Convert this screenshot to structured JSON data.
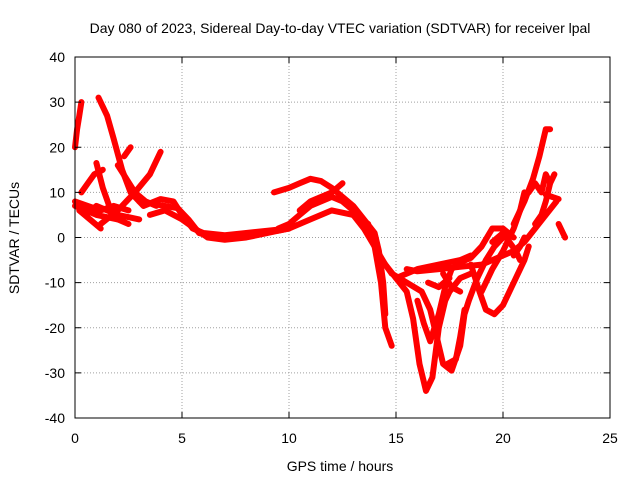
{
  "chart_data": {
    "type": "scatter",
    "title": "Day 080 of 2023, Sidereal Day-to-day VTEC variation (SDTVAR) for receiver lpal",
    "xlabel": "GPS time / hours",
    "ylabel": "SDTVAR / TECUs",
    "xlim": [
      0,
      25
    ],
    "ylim": [
      -40,
      40
    ],
    "xticks": [
      "0",
      "5",
      "10",
      "15",
      "20",
      "25"
    ],
    "yticks": [
      "-40",
      "-30",
      "-20",
      "-10",
      "0",
      "10",
      "20",
      "30",
      "40"
    ],
    "grid": true,
    "marker": "+",
    "color": "#ff0000",
    "series": [
      {
        "points": [
          [
            0,
            20
          ],
          [
            0.1,
            24
          ],
          [
            0.2,
            27
          ],
          [
            0.3,
            30
          ]
        ]
      },
      {
        "points": [
          [
            1.1,
            31
          ],
          [
            1.5,
            27
          ],
          [
            1.8,
            22
          ],
          [
            2.2,
            15
          ],
          [
            2.6,
            10
          ],
          [
            3.2,
            7
          ],
          [
            4.0,
            8.5
          ],
          [
            4.6,
            8
          ],
          [
            5.0,
            5
          ],
          [
            5.5,
            2
          ],
          [
            6.0,
            1
          ],
          [
            7,
            0.5
          ],
          [
            8,
            1
          ],
          [
            9,
            1.5
          ],
          [
            10,
            2
          ]
        ]
      },
      {
        "points": [
          [
            0.3,
            10
          ],
          [
            0.6,
            12
          ],
          [
            0.9,
            14
          ],
          [
            1.3,
            15
          ]
        ]
      },
      {
        "points": [
          [
            1.0,
            16.5
          ],
          [
            1.3,
            11
          ],
          [
            1.6,
            7
          ],
          [
            2.0,
            4
          ],
          [
            2.5,
            3
          ]
        ]
      },
      {
        "points": [
          [
            2.0,
            16
          ],
          [
            2.4,
            13
          ],
          [
            2.8,
            10
          ],
          [
            3.3,
            8
          ],
          [
            3.8,
            7
          ]
        ]
      },
      {
        "points": [
          [
            2.3,
            18
          ],
          [
            2.6,
            20
          ]
        ]
      },
      {
        "points": [
          [
            0,
            7
          ],
          [
            0.5,
            6
          ],
          [
            1.0,
            5
          ],
          [
            1.5,
            4.5
          ],
          [
            2.0,
            4
          ]
        ]
      },
      {
        "points": [
          [
            0.5,
            5
          ],
          [
            1.0,
            7
          ],
          [
            1.5,
            6
          ],
          [
            2.0,
            5
          ],
          [
            3.0,
            4
          ]
        ]
      },
      {
        "points": [
          [
            1.2,
            3
          ],
          [
            2.0,
            6
          ],
          [
            2.8,
            10
          ],
          [
            3.5,
            14
          ],
          [
            4.0,
            19
          ]
        ]
      },
      {
        "points": [
          [
            0,
            8
          ],
          [
            0.6,
            7
          ],
          [
            1.2,
            6
          ],
          [
            1.8,
            7
          ],
          [
            2.5,
            6
          ]
        ]
      },
      {
        "points": [
          [
            0.2,
            6
          ],
          [
            0.7,
            4
          ],
          [
            1.2,
            2
          ]
        ]
      },
      {
        "points": [
          [
            3.0,
            8
          ],
          [
            3.6,
            7.5
          ],
          [
            4.2,
            7
          ],
          [
            4.8,
            6.5
          ],
          [
            5.3,
            4
          ],
          [
            5.8,
            1
          ],
          [
            6.5,
            0
          ],
          [
            7.5,
            0.5
          ],
          [
            8.5,
            1
          ],
          [
            9.5,
            1.5
          ],
          [
            10,
            2
          ]
        ]
      },
      {
        "points": [
          [
            3.5,
            5
          ],
          [
            4.2,
            6
          ],
          [
            5.0,
            4
          ],
          [
            5.6,
            2
          ],
          [
            6.2,
            0
          ],
          [
            7,
            -0.5
          ],
          [
            8,
            0
          ],
          [
            9,
            1
          ],
          [
            10,
            2
          ],
          [
            11,
            4
          ],
          [
            12,
            6
          ],
          [
            13,
            5
          ],
          [
            13.7,
            3
          ]
        ]
      },
      {
        "points": [
          [
            9.5,
            2
          ],
          [
            10,
            3
          ],
          [
            10.5,
            5
          ],
          [
            11,
            7
          ],
          [
            11.5,
            8
          ],
          [
            12,
            9
          ],
          [
            12.5,
            8
          ],
          [
            13,
            6
          ],
          [
            13.5,
            3
          ],
          [
            14,
            -2
          ],
          [
            14.3,
            -10
          ],
          [
            14.5,
            -20
          ],
          [
            14.8,
            -24
          ]
        ]
      },
      {
        "points": [
          [
            9.3,
            10
          ],
          [
            10,
            11
          ],
          [
            10.5,
            12
          ],
          [
            11,
            13
          ],
          [
            11.5,
            12.5
          ],
          [
            12,
            11
          ],
          [
            12.5,
            9
          ],
          [
            13,
            7
          ],
          [
            13.5,
            4
          ],
          [
            14,
            1
          ],
          [
            14.2,
            -3
          ],
          [
            14.4,
            -10
          ],
          [
            14.5,
            -17
          ]
        ]
      },
      {
        "points": [
          [
            10.5,
            6
          ],
          [
            11,
            8
          ],
          [
            11.5,
            9
          ],
          [
            12,
            10
          ],
          [
            12.5,
            12
          ]
        ]
      },
      {
        "points": [
          [
            13,
            5
          ],
          [
            13.5,
            2
          ],
          [
            14,
            -2
          ],
          [
            14.5,
            -6
          ],
          [
            15,
            -9
          ],
          [
            15.5,
            -12
          ],
          [
            15.8,
            -18
          ],
          [
            16.1,
            -28
          ],
          [
            16.4,
            -34
          ],
          [
            16.7,
            -31
          ],
          [
            17,
            -20
          ],
          [
            17.3,
            -14
          ],
          [
            17.5,
            -12
          ],
          [
            18,
            -9
          ],
          [
            18.5,
            -8
          ]
        ]
      },
      {
        "points": [
          [
            14.2,
            -4
          ],
          [
            14.8,
            -8
          ],
          [
            15.5,
            -10
          ],
          [
            16.2,
            -12
          ],
          [
            16.6,
            -16
          ],
          [
            16.9,
            -22
          ],
          [
            17.2,
            -28
          ],
          [
            17.6,
            -29.5
          ],
          [
            18,
            -24
          ],
          [
            18.2,
            -17
          ],
          [
            18.4,
            -14
          ],
          [
            18.8,
            -9
          ],
          [
            19.2,
            -5
          ],
          [
            19.6,
            -2
          ],
          [
            20,
            0
          ]
        ]
      },
      {
        "points": [
          [
            15.5,
            -7
          ],
          [
            16,
            -7.5
          ],
          [
            17,
            -7
          ],
          [
            18,
            -6.5
          ],
          [
            19,
            -6
          ],
          [
            19.5,
            -5
          ],
          [
            20,
            -4
          ],
          [
            20.5,
            -3
          ],
          [
            21,
            -1
          ],
          [
            21.5,
            2
          ],
          [
            22,
            5
          ],
          [
            22.5,
            8
          ]
        ]
      },
      {
        "points": [
          [
            15,
            -9
          ],
          [
            15.5,
            -8
          ],
          [
            16,
            -7
          ],
          [
            17,
            -6
          ],
          [
            18,
            -5
          ],
          [
            18.5,
            -4
          ]
        ]
      },
      {
        "points": [
          [
            16,
            -14
          ],
          [
            16.3,
            -19
          ],
          [
            16.6,
            -23
          ],
          [
            17,
            -17
          ],
          [
            17.3,
            -11
          ],
          [
            17.6,
            -7
          ],
          [
            18,
            -5.5
          ],
          [
            18.5,
            -4.5
          ],
          [
            19,
            -2
          ],
          [
            19.5,
            2
          ],
          [
            20,
            2
          ],
          [
            20.5,
            0
          ]
        ]
      },
      {
        "points": [
          [
            17.2,
            -8
          ],
          [
            17.6,
            -11
          ],
          [
            18.0,
            -12
          ]
        ]
      },
      {
        "points": [
          [
            16.5,
            -10
          ],
          [
            17,
            -11
          ],
          [
            17.5,
            -9
          ]
        ]
      },
      {
        "points": [
          [
            17.4,
            -28
          ],
          [
            17.8,
            -27
          ],
          [
            18.0,
            -22
          ],
          [
            18.2,
            -16
          ]
        ]
      },
      {
        "points": [
          [
            18.5,
            -6
          ],
          [
            18.9,
            -12
          ],
          [
            19.2,
            -16
          ],
          [
            19.6,
            -17
          ],
          [
            20,
            -15
          ],
          [
            20.5,
            -10
          ],
          [
            21,
            -5
          ],
          [
            21.2,
            -2
          ]
        ]
      },
      {
        "points": [
          [
            19,
            -12
          ],
          [
            19.5,
            -7
          ],
          [
            20,
            -3
          ],
          [
            20.5,
            2
          ],
          [
            20.8,
            6
          ],
          [
            21,
            10
          ]
        ]
      },
      {
        "points": [
          [
            19.5,
            -1
          ],
          [
            20,
            1
          ],
          [
            20.3,
            -1
          ],
          [
            20.6,
            -3
          ],
          [
            20.8,
            -5
          ]
        ]
      },
      {
        "points": [
          [
            20.5,
            3
          ],
          [
            21,
            8
          ],
          [
            21.4,
            13
          ],
          [
            21.7,
            18
          ],
          [
            22,
            24
          ],
          [
            22.2,
            24
          ]
        ]
      },
      {
        "points": [
          [
            21.2,
            10
          ],
          [
            21.5,
            12
          ],
          [
            21.8,
            10
          ],
          [
            22.0,
            14
          ],
          [
            22.2,
            12
          ]
        ]
      },
      {
        "points": [
          [
            21.5,
            3
          ],
          [
            21.8,
            5
          ],
          [
            22.0,
            8
          ],
          [
            22.2,
            12
          ],
          [
            22.4,
            14
          ]
        ]
      },
      {
        "points": [
          [
            22.0,
            9.5
          ],
          [
            22.3,
            9
          ],
          [
            22.6,
            8.5
          ]
        ]
      },
      {
        "points": [
          [
            22.6,
            3
          ],
          [
            22.8,
            1
          ],
          [
            22.9,
            0
          ]
        ]
      },
      {
        "points": [
          [
            20.5,
            -4
          ],
          [
            20.8,
            -2
          ],
          [
            21.0,
            0
          ]
        ]
      }
    ]
  }
}
